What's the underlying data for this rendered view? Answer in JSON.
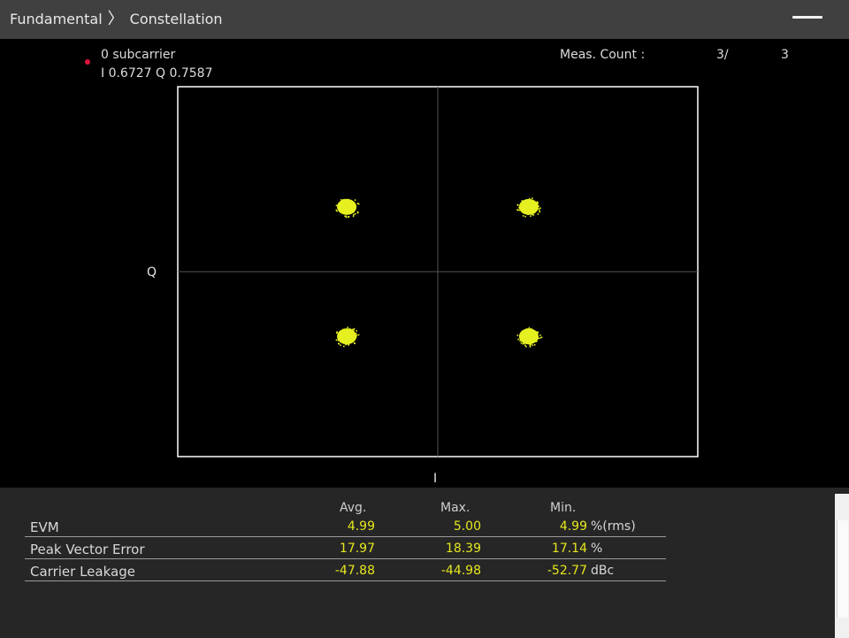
{
  "breadcrumb": {
    "parent": "Fundamental",
    "separator": "〉",
    "current": "Constellation"
  },
  "window": {
    "minimize_icon": "minimize-icon"
  },
  "marker": {
    "name": "0 subcarrier",
    "value": "I 0.6727 Q 0.7587",
    "color": "#e0143c"
  },
  "meas_count": {
    "label": "Meas. Count :",
    "current": "3/",
    "total": "3"
  },
  "plot": {
    "x_axis_label": "I",
    "y_axis_label": "Q",
    "point_color": "#e6f020",
    "frame_color": "#ffffff",
    "grid_color": "#555555"
  },
  "chart_data": {
    "type": "scatter",
    "modulation_points": [
      {
        "i": -0.7,
        "q": 0.7
      },
      {
        "i": 0.7,
        "q": 0.7
      },
      {
        "i": -0.7,
        "q": -0.7
      },
      {
        "i": 0.7,
        "q": -0.7
      }
    ],
    "xlim": [
      -2,
      2
    ],
    "ylim": [
      -2,
      2
    ],
    "xlabel": "I",
    "ylabel": "Q",
    "grid": true
  },
  "results": {
    "headers": [
      "Avg.",
      "Max.",
      "Min."
    ],
    "rows": [
      {
        "label": "EVM",
        "avg": "4.99",
        "max": "5.00",
        "min": "4.99",
        "unit": "%(rms)"
      },
      {
        "label": "Peak Vector Error",
        "avg": "17.97",
        "max": "18.39",
        "min": "17.14",
        "unit": "%"
      },
      {
        "label": "Carrier Leakage",
        "avg": "-47.88",
        "max": "-44.98",
        "min": "-52.77",
        "unit": "dBc"
      }
    ]
  }
}
